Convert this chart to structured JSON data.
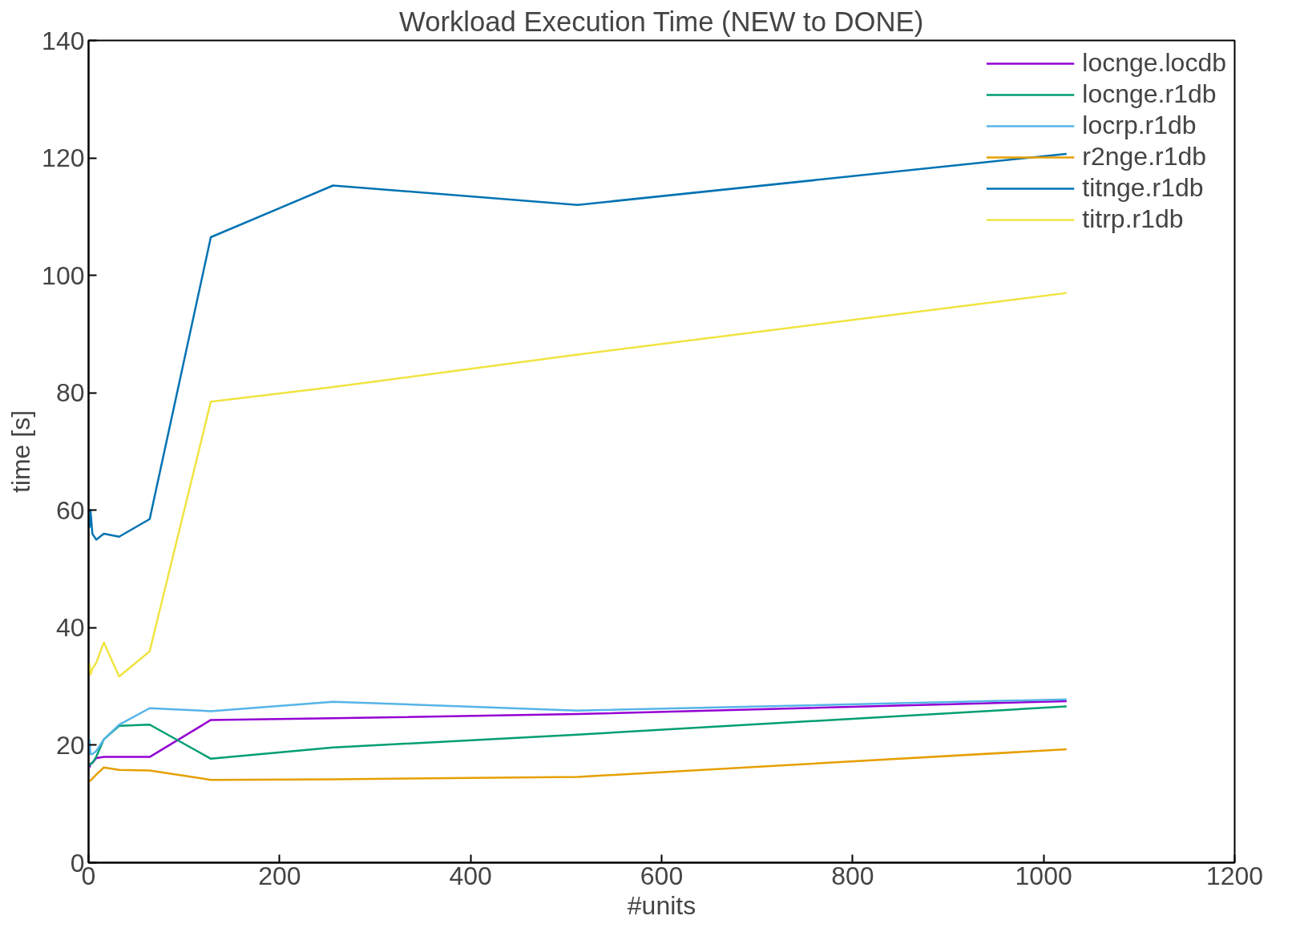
{
  "chart_data": {
    "type": "line",
    "title": "Workload Execution Time (NEW to DONE)",
    "xlabel": "#units",
    "ylabel": "time [s]",
    "x": [
      1,
      2,
      4,
      8,
      16,
      32,
      64,
      128,
      256,
      512,
      1024
    ],
    "xlim": [
      0,
      1200
    ],
    "xticks": [
      0,
      200,
      400,
      600,
      800,
      1000,
      1200
    ],
    "ylim": [
      0,
      140
    ],
    "yticks": [
      0,
      20,
      40,
      60,
      80,
      100,
      120,
      140
    ],
    "grid": false,
    "legend": "top right",
    "marker": "none",
    "line_style": "solid",
    "series": [
      {
        "name": "locnge.locdb",
        "color": "#9400d3",
        "values": [
          16.2,
          16.8,
          17,
          17.8,
          18,
          18,
          18,
          24.3,
          24.6,
          25.3,
          27.5
        ]
      },
      {
        "name": "locnge.r1db",
        "color": "#009e73",
        "values": [
          16.5,
          16.8,
          17,
          18,
          21,
          23.3,
          23.5,
          17.7,
          19.6,
          21.8,
          26.6
        ]
      },
      {
        "name": "locrp.r1db",
        "color": "#56b4e9",
        "values": [
          21,
          18.5,
          18.5,
          19,
          21,
          23.5,
          26.3,
          25.8,
          27.4,
          25.9,
          27.8
        ]
      },
      {
        "name": "r2nge.r1db",
        "color": "#e69f00",
        "values": [
          13.8,
          14,
          14.3,
          15,
          16.2,
          15.8,
          15.7,
          14.1,
          14.2,
          14.6,
          19.3
        ]
      },
      {
        "name": "titnge.r1db",
        "color": "#0072b2",
        "values": [
          57,
          60,
          56,
          55,
          56,
          55.5,
          58.5,
          106.5,
          115.3,
          112,
          120.7
        ]
      },
      {
        "name": "titrp.r1db",
        "color": "#f0e442",
        "values": [
          34,
          32,
          33,
          34,
          37.5,
          31.7,
          36,
          78.5,
          81,
          86.5,
          97
        ]
      }
    ]
  }
}
